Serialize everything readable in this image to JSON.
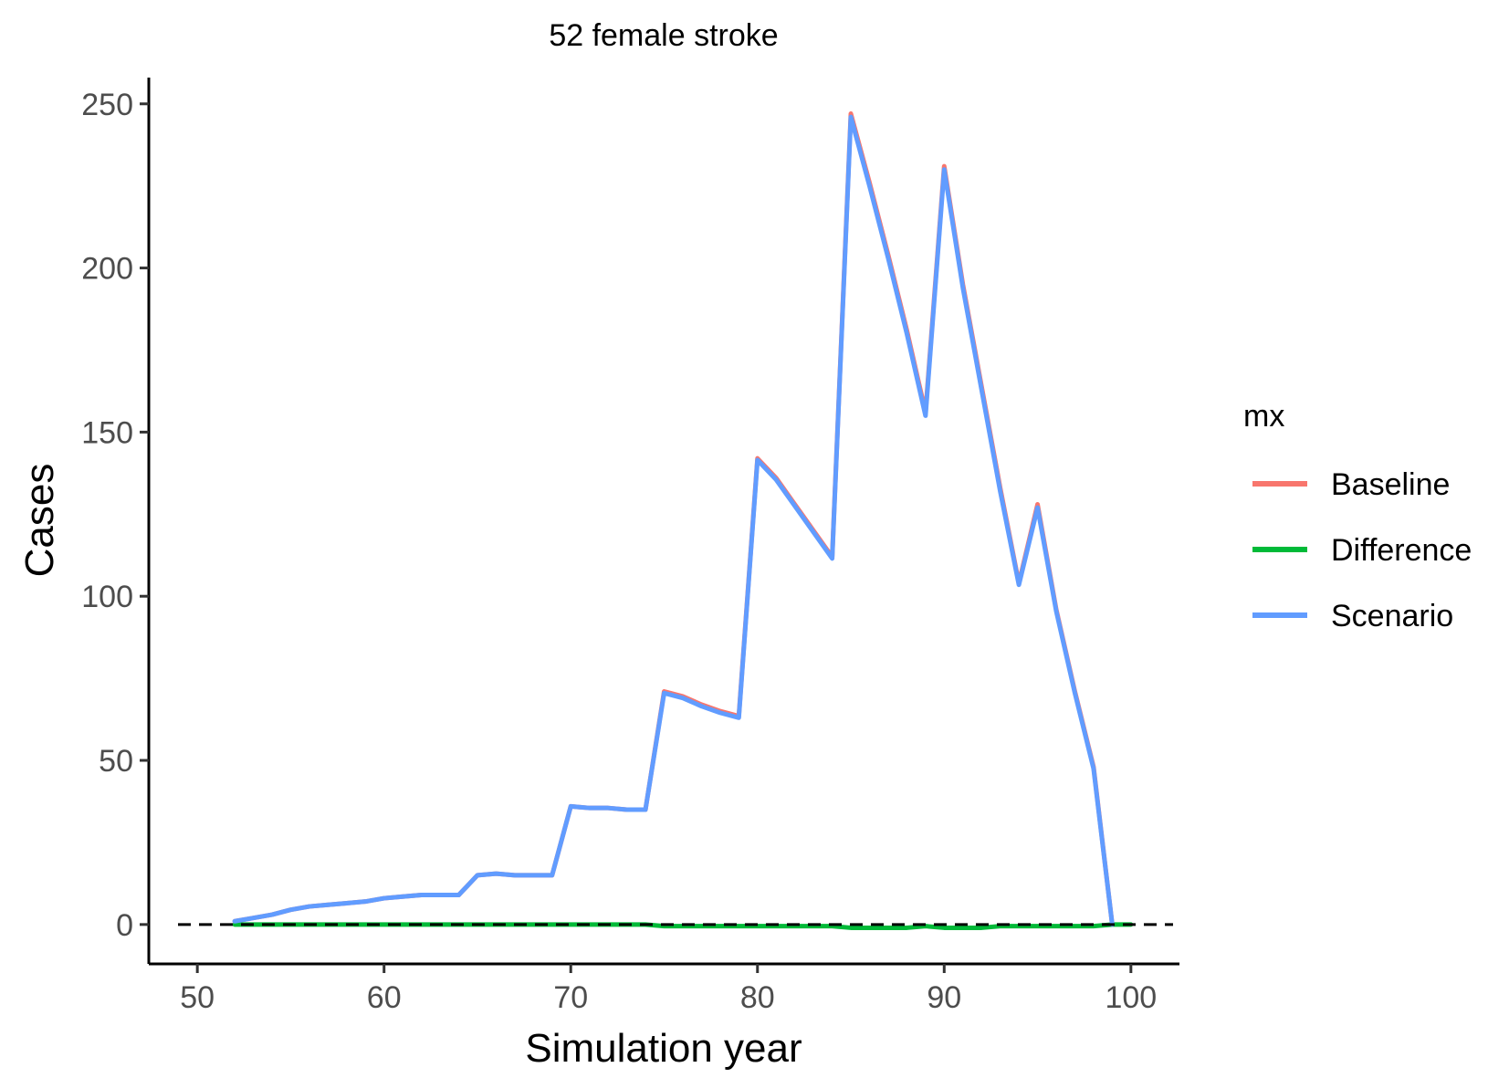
{
  "chart_data": {
    "type": "line",
    "title": "52 female stroke",
    "xlabel": "Simulation year",
    "ylabel": "Cases",
    "xlim": [
      52,
      100
    ],
    "ylim": [
      -12,
      258
    ],
    "xticks": [
      50,
      60,
      70,
      80,
      90,
      100
    ],
    "yticks": [
      0,
      50,
      100,
      150,
      200,
      250
    ],
    "grid": false,
    "reference_line": {
      "y": 0,
      "style": "dashed",
      "color": "#000000"
    },
    "legend": {
      "title": "mx",
      "position": "right"
    },
    "series": [
      {
        "name": "Baseline",
        "color": "#F8766D",
        "x": [
          52,
          53,
          54,
          55,
          56,
          57,
          58,
          59,
          60,
          61,
          62,
          63,
          64,
          65,
          66,
          67,
          68,
          69,
          70,
          71,
          72,
          73,
          74,
          75,
          76,
          77,
          78,
          79,
          80,
          81,
          82,
          83,
          84,
          85,
          86,
          87,
          88,
          89,
          90,
          91,
          92,
          93,
          94,
          95,
          96,
          97,
          98,
          99
        ],
        "y": [
          1,
          2,
          3,
          4.5,
          5.5,
          6,
          6.5,
          7,
          8,
          8.5,
          9,
          9,
          9,
          15,
          15.5,
          15,
          15,
          15,
          36,
          35.5,
          35.5,
          35,
          35,
          71,
          69.5,
          67,
          65,
          63.5,
          142,
          136,
          128,
          120,
          112,
          247,
          226,
          204,
          181,
          156,
          231,
          195,
          164,
          133,
          104,
          128,
          96,
          71,
          48,
          0
        ]
      },
      {
        "name": "Difference",
        "color": "#00BA38",
        "x": [
          52,
          53,
          54,
          55,
          56,
          57,
          58,
          59,
          60,
          61,
          62,
          63,
          64,
          65,
          66,
          67,
          68,
          69,
          70,
          71,
          72,
          73,
          74,
          75,
          76,
          77,
          78,
          79,
          80,
          81,
          82,
          83,
          84,
          85,
          86,
          87,
          88,
          89,
          90,
          91,
          92,
          93,
          94,
          95,
          96,
          97,
          98,
          99,
          100
        ],
        "y": [
          0,
          0,
          0,
          0,
          0,
          0,
          0,
          0,
          0,
          0,
          0,
          0,
          0,
          0,
          0,
          0,
          0,
          0,
          0,
          0,
          0,
          0,
          0,
          -0.5,
          -0.5,
          -0.5,
          -0.5,
          -0.5,
          -0.5,
          -0.5,
          -0.5,
          -0.5,
          -0.5,
          -1,
          -1,
          -1,
          -1,
          -0.5,
          -1,
          -1,
          -1,
          -0.5,
          -0.5,
          -0.5,
          -0.5,
          -0.5,
          -0.5,
          0,
          0
        ]
      },
      {
        "name": "Scenario",
        "color": "#619CFF",
        "x": [
          52,
          53,
          54,
          55,
          56,
          57,
          58,
          59,
          60,
          61,
          62,
          63,
          64,
          65,
          66,
          67,
          68,
          69,
          70,
          71,
          72,
          73,
          74,
          75,
          76,
          77,
          78,
          79,
          80,
          81,
          82,
          83,
          84,
          85,
          86,
          87,
          88,
          89,
          90,
          91,
          92,
          93,
          94,
          95,
          96,
          97,
          98,
          99
        ],
        "y": [
          1,
          2,
          3,
          4.5,
          5.5,
          6,
          6.5,
          7,
          8,
          8.5,
          9,
          9,
          9,
          15,
          15.5,
          15,
          15,
          15,
          36,
          35.5,
          35.5,
          35,
          35,
          70.5,
          69,
          66.5,
          64.5,
          63,
          141.5,
          135.5,
          127.5,
          119.5,
          111.5,
          246,
          225,
          203,
          180,
          155,
          230,
          194,
          163,
          132,
          103.5,
          127,
          95.5,
          70.5,
          47.5,
          0
        ]
      }
    ]
  }
}
